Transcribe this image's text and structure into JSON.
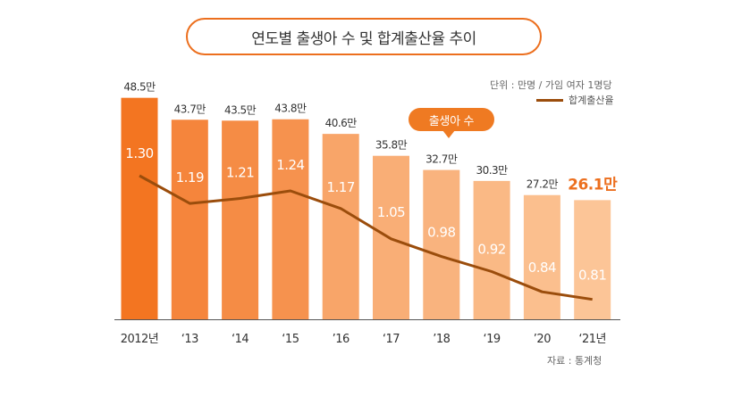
{
  "header": {
    "title": "연도별 출생아 수 및 합계출산율 추이"
  },
  "unit_note": "단위 : 만명 / 가임 여자 1명당",
  "legend_label": "합계출산율",
  "source": "자료 : 통계청",
  "bubble_label": "출생아 수",
  "colors": {
    "accent": "#ec6f1e",
    "line": "#9b4d0c",
    "bars": [
      "#f37521",
      "#f5853c",
      "#f58c45",
      "#f6924e",
      "#f8a569",
      "#f9ae76",
      "#f9b37e",
      "#fab985",
      "#fbbf8e",
      "#fcc597"
    ]
  },
  "chart_data": {
    "type": "bar",
    "title": "연도별 출생아 수 및 합계출산율 추이",
    "categories": [
      "2012년",
      "‘13",
      "‘14",
      "‘15",
      "’16",
      "‘17",
      "’18",
      "‘19",
      "’20",
      "‘21년"
    ],
    "series": [
      {
        "name": "출생아 수",
        "unit": "만명",
        "values": [
          48.5,
          43.7,
          43.5,
          43.8,
          40.6,
          35.8,
          32.7,
          30.3,
          27.2,
          26.1
        ],
        "labels": [
          "48.5만",
          "43.7만",
          "43.5만",
          "43.8만",
          "40.6만",
          "35.8만",
          "32.7만",
          "30.3만",
          "27.2만",
          "26.1만"
        ]
      },
      {
        "name": "합계출산율",
        "type": "line",
        "values": [
          1.3,
          1.19,
          1.21,
          1.24,
          1.17,
          1.05,
          0.98,
          0.92,
          0.84,
          0.81
        ],
        "labels": [
          "1.30",
          "1.19",
          "1.21",
          "1.24",
          "1.17",
          "1.05",
          "0.98",
          "0.92",
          "0.84",
          "0.81"
        ]
      }
    ],
    "xlabel": "",
    "ylabel": "",
    "grid": false,
    "legend": "top-right"
  }
}
